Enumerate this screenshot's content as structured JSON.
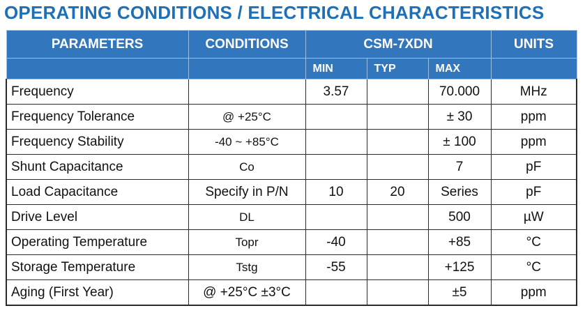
{
  "title": "OPERATING CONDITIONS / ELECTRICAL CHARACTERISTICS",
  "header": {
    "parameters": "PARAMETERS",
    "conditions": "CONDITIONS",
    "model": "CSM-7XDN",
    "units": "UNITS",
    "min": "MIN",
    "typ": "TYP",
    "max": "MAX"
  },
  "rows": [
    {
      "param": "Frequency",
      "cond": "",
      "min": "3.57",
      "typ": "",
      "max": "70.000",
      "unit": "MHz"
    },
    {
      "param": "Frequency Tolerance",
      "cond": "@ +25°C",
      "min": "",
      "typ": "",
      "max": "± 30",
      "unit": "ppm"
    },
    {
      "param": "Frequency Stability",
      "cond": "-40 ~ +85°C",
      "min": "",
      "typ": "",
      "max": "± 100",
      "unit": "ppm"
    },
    {
      "param": "Shunt Capacitance",
      "cond": "Co",
      "min": "",
      "typ": "",
      "max": "7",
      "unit": "pF"
    },
    {
      "param": "Load Capacitance",
      "cond": "Specify in P/N",
      "min": "10",
      "typ": "20",
      "max": "Series",
      "unit": "pF"
    },
    {
      "param": "Drive Level",
      "cond": "DL",
      "min": "",
      "typ": "",
      "max": "500",
      "unit": "µW"
    },
    {
      "param": "Operating Temperature",
      "cond": "Topr",
      "min": "-40",
      "typ": "",
      "max": "+85",
      "unit": "°C"
    },
    {
      "param": "Storage Temperature",
      "cond": "Tstg",
      "min": "-55",
      "typ": "",
      "max": "+125",
      "unit": "°C"
    },
    {
      "param": "Aging (First Year)",
      "cond": "@ +25°C ±3°C",
      "min": "",
      "typ": "",
      "max": "±5",
      "unit": "ppm"
    }
  ],
  "colors": {
    "title": "#1f6fb6",
    "header_bg": "#3277bd",
    "header_text": "#ffffff"
  }
}
